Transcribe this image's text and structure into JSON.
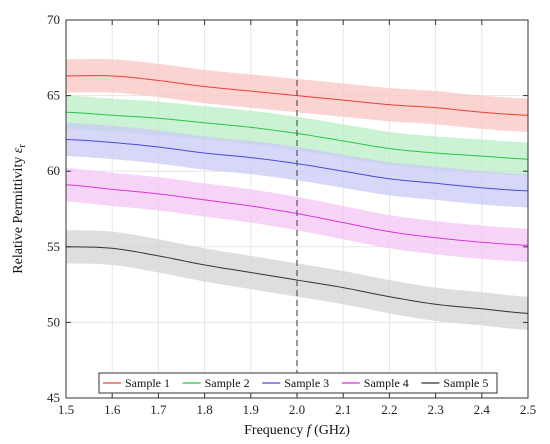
{
  "chart_data": {
    "type": "line",
    "xlabel_main": "Frequency ",
    "xlabel_symbol": "f",
    "xlabel_unit": " (GHz)",
    "ylabel_main": "Relative Permittivity ",
    "ylabel_symbol": "ε",
    "ylabel_sub": "r",
    "xlim": [
      1.5,
      2.5
    ],
    "ylim": [
      45,
      70
    ],
    "xticks": [
      1.5,
      1.6,
      1.7,
      1.8,
      1.9,
      2.0,
      2.1,
      2.2,
      2.3,
      2.4,
      2.5
    ],
    "xtick_labels": [
      "1.5",
      "1.6",
      "1.7",
      "1.8",
      "1.9",
      "2.0",
      "2.1",
      "2.2",
      "2.3",
      "2.4",
      "2.5"
    ],
    "yticks": [
      45,
      50,
      55,
      60,
      65,
      70
    ],
    "ytick_labels": [
      "45",
      "50",
      "55",
      "60",
      "65",
      "70"
    ],
    "grid": true,
    "legend_position": "bottom",
    "reference_line_x": 2.0,
    "x": [
      1.5,
      1.6,
      1.7,
      1.8,
      1.9,
      2.0,
      2.1,
      2.2,
      2.3,
      2.4,
      2.5
    ],
    "band_halfwidth": 1.1,
    "series": [
      {
        "name": "Sample 1",
        "color": "#e8403a",
        "fill": "#f9c4c2",
        "values": [
          66.3,
          66.3,
          66.0,
          65.6,
          65.3,
          65.0,
          64.7,
          64.4,
          64.2,
          63.9,
          63.7
        ]
      },
      {
        "name": "Sample 2",
        "color": "#2ec24a",
        "fill": "#b9eec3",
        "values": [
          63.9,
          63.7,
          63.5,
          63.2,
          62.9,
          62.5,
          62.0,
          61.5,
          61.2,
          61.0,
          60.8
        ]
      },
      {
        "name": "Sample 3",
        "color": "#4b4bd6",
        "fill": "#c9c9f5",
        "values": [
          62.1,
          61.9,
          61.6,
          61.2,
          60.9,
          60.5,
          60.0,
          59.5,
          59.2,
          58.9,
          58.7
        ]
      },
      {
        "name": "Sample 4",
        "color": "#d838d8",
        "fill": "#f5c4f5",
        "values": [
          59.1,
          58.8,
          58.5,
          58.1,
          57.7,
          57.2,
          56.6,
          56.0,
          55.6,
          55.3,
          55.1
        ]
      },
      {
        "name": "Sample 5",
        "color": "#333333",
        "fill": "#d3d3d3",
        "values": [
          55.0,
          54.9,
          54.4,
          53.8,
          53.3,
          52.8,
          52.3,
          51.7,
          51.2,
          50.9,
          50.6
        ]
      }
    ]
  }
}
